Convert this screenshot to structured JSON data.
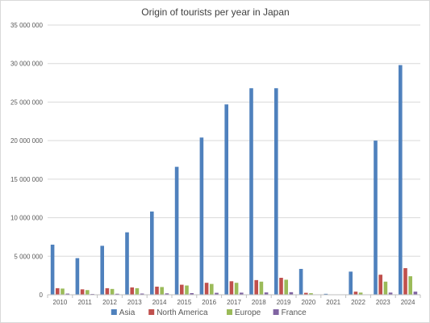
{
  "chart_data": {
    "type": "bar",
    "title": "Origin of tourists per year in Japan",
    "categories": [
      "2010",
      "2011",
      "2012",
      "2013",
      "2014",
      "2015",
      "2016",
      "2017",
      "2018",
      "2019",
      "2020",
      "2021",
      "2022",
      "2023",
      "2024"
    ],
    "series": [
      {
        "name": "Asia",
        "color": "#4f81bd",
        "values": [
          6500000,
          4750000,
          6350000,
          8100000,
          10800000,
          16600000,
          20400000,
          24700000,
          26800000,
          26800000,
          3350000,
          120000,
          3000000,
          20000000,
          29800000
        ]
      },
      {
        "name": "North America",
        "color": "#c0504d",
        "values": [
          850000,
          700000,
          850000,
          950000,
          1050000,
          1300000,
          1550000,
          1750000,
          1900000,
          2200000,
          250000,
          40000,
          400000,
          2600000,
          3450000
        ]
      },
      {
        "name": "Europe",
        "color": "#9bbb59",
        "values": [
          800000,
          600000,
          750000,
          850000,
          1000000,
          1200000,
          1400000,
          1550000,
          1700000,
          1950000,
          200000,
          30000,
          280000,
          1700000,
          2400000
        ]
      },
      {
        "name": "France",
        "color": "#8064a2",
        "values": [
          150000,
          100000,
          130000,
          155000,
          180000,
          210000,
          250000,
          270000,
          300000,
          330000,
          40000,
          5000,
          50000,
          280000,
          400000
        ]
      }
    ],
    "y_ticks": [
      "0",
      "5 000 000",
      "10 000 000",
      "15 000 000",
      "20 000 000",
      "25 000 000",
      "30 000 000",
      "35 000 000"
    ],
    "ylim": [
      0,
      35000000
    ],
    "grid": true,
    "legend_position": "bottom"
  }
}
